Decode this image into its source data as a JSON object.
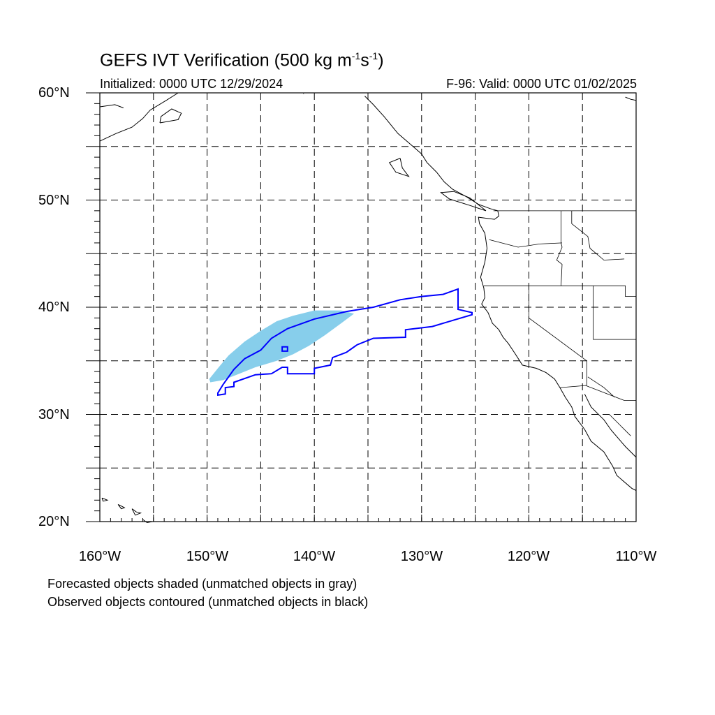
{
  "title": {
    "main": "GEFS IVT Verification (500 kg m",
    "exp1": "-1",
    "mid": "s",
    "exp2": "-1",
    "close": ")"
  },
  "subtitle_left": "Initialized: 0000 UTC 12/29/2024",
  "subtitle_right": "F-96: Valid: 0000 UTC 01/02/2025",
  "lat_labels": [
    "60°N",
    "50°N",
    "40°N",
    "30°N",
    "20°N"
  ],
  "lon_labels": [
    "160°W",
    "150°W",
    "140°W",
    "130°W",
    "120°W",
    "110°W"
  ],
  "footnotes": [
    "Forecasted objects shaded (unmatched objects in gray)",
    "Observed objects contoured (unmatched objects in black)"
  ],
  "extent": {
    "lon_min": -160,
    "lon_max": -110,
    "lat_min": 20,
    "lat_max": 60
  },
  "colors": {
    "forecast_fill": "#87ceeb",
    "observed_contour": "#0000ff",
    "coastline": "#000000",
    "grid": "#000000"
  },
  "grid": {
    "lines": "dashed",
    "lat_step": 5,
    "lon_step": 5
  },
  "forecast_object": {
    "matched": true,
    "polygon": [
      [
        -149.7,
        33.0
      ],
      [
        -148.5,
        33.2
      ],
      [
        -147.0,
        33.8
      ],
      [
        -145.5,
        34.4
      ],
      [
        -143.5,
        35.0
      ],
      [
        -142.0,
        35.6
      ],
      [
        -140.5,
        36.4
      ],
      [
        -139.0,
        37.4
      ],
      [
        -137.5,
        38.5
      ],
      [
        -136.3,
        39.4
      ],
      [
        -137.5,
        39.7
      ],
      [
        -140.0,
        39.7
      ],
      [
        -142.0,
        39.2
      ],
      [
        -143.5,
        38.7
      ],
      [
        -145.0,
        37.8
      ],
      [
        -146.5,
        36.8
      ],
      [
        -148.0,
        35.5
      ],
      [
        -149.0,
        34.3
      ],
      [
        -149.8,
        33.3
      ]
    ]
  },
  "observed_object": {
    "matched": true,
    "polygon": [
      [
        -149.0,
        31.8
      ],
      [
        -148.3,
        31.9
      ],
      [
        -148.3,
        32.5
      ],
      [
        -147.5,
        32.6
      ],
      [
        -147.5,
        33.0
      ],
      [
        -145.5,
        33.7
      ],
      [
        -144.0,
        33.8
      ],
      [
        -143.0,
        34.4
      ],
      [
        -142.5,
        34.4
      ],
      [
        -142.5,
        33.8
      ],
      [
        -140.0,
        33.8
      ],
      [
        -140.0,
        34.3
      ],
      [
        -138.5,
        34.6
      ],
      [
        -138.3,
        35.3
      ],
      [
        -137.0,
        35.8
      ],
      [
        -136.0,
        36.5
      ],
      [
        -134.5,
        37.1
      ],
      [
        -131.5,
        37.2
      ],
      [
        -131.5,
        37.9
      ],
      [
        -129.0,
        38.2
      ],
      [
        -127.0,
        38.8
      ],
      [
        -125.3,
        39.3
      ],
      [
        -125.3,
        39.5
      ],
      [
        -126.6,
        39.8
      ],
      [
        -126.6,
        41.7
      ],
      [
        -128.0,
        41.2
      ],
      [
        -130.0,
        41.0
      ],
      [
        -132.0,
        40.7
      ],
      [
        -134.5,
        40.0
      ],
      [
        -137.0,
        39.6
      ],
      [
        -140.0,
        38.9
      ],
      [
        -142.5,
        38.0
      ],
      [
        -144.0,
        37.1
      ],
      [
        -145.0,
        36.0
      ],
      [
        -146.5,
        35.2
      ],
      [
        -147.5,
        34.2
      ],
      [
        -148.5,
        32.8
      ],
      [
        -149.0,
        32.0
      ]
    ],
    "inner_box": [
      [
        -143.0,
        35.9
      ],
      [
        -142.5,
        35.9
      ],
      [
        -142.5,
        36.3
      ],
      [
        -143.0,
        36.3
      ]
    ]
  },
  "coastlines": [
    [
      [
        -135.3,
        59.7
      ],
      [
        -134.5,
        58.9
      ],
      [
        -133.5,
        57.8
      ],
      [
        -132.2,
        56.2
      ],
      [
        -130.8,
        55.0
      ],
      [
        -130.0,
        54.3
      ],
      [
        -129.5,
        53.5
      ],
      [
        -128.6,
        52.6
      ],
      [
        -127.9,
        51.7
      ],
      [
        -127.1,
        51.0
      ],
      [
        -125.8,
        50.3
      ],
      [
        -124.7,
        49.6
      ],
      [
        -123.6,
        49.2
      ],
      [
        -122.9,
        49.0
      ],
      [
        -122.8,
        48.5
      ],
      [
        -123.2,
        48.2
      ],
      [
        -124.7,
        48.4
      ],
      [
        -124.6,
        47.8
      ],
      [
        -124.1,
        46.9
      ],
      [
        -124.0,
        46.2
      ],
      [
        -123.9,
        45.5
      ],
      [
        -124.1,
        44.2
      ],
      [
        -124.5,
        42.8
      ],
      [
        -124.2,
        41.8
      ],
      [
        -124.1,
        40.9
      ],
      [
        -124.4,
        40.3
      ],
      [
        -123.8,
        39.5
      ],
      [
        -123.4,
        38.5
      ],
      [
        -122.8,
        37.9
      ],
      [
        -122.4,
        37.2
      ],
      [
        -121.9,
        36.6
      ],
      [
        -121.3,
        35.7
      ],
      [
        -120.6,
        34.6
      ],
      [
        -119.3,
        34.3
      ],
      [
        -118.4,
        33.9
      ],
      [
        -117.6,
        33.3
      ],
      [
        -117.1,
        32.5
      ],
      [
        -116.6,
        31.6
      ],
      [
        -116.0,
        30.7
      ],
      [
        -115.7,
        29.8
      ],
      [
        -114.8,
        28.6
      ],
      [
        -114.2,
        27.5
      ],
      [
        -113.0,
        26.5
      ],
      [
        -112.2,
        25.2
      ],
      [
        -111.8,
        24.3
      ],
      [
        -110.4,
        23.1
      ],
      [
        -110.0,
        22.9
      ]
    ],
    [
      [
        -114.8,
        31.9
      ],
      [
        -114.2,
        30.7
      ],
      [
        -113.0,
        29.5
      ],
      [
        -112.3,
        28.5
      ],
      [
        -111.0,
        27.0
      ],
      [
        -110.0,
        26.0
      ]
    ],
    [
      [
        -160.0,
        55.5
      ],
      [
        -158.5,
        56.2
      ],
      [
        -157.0,
        56.8
      ],
      [
        -156.0,
        57.6
      ],
      [
        -155.3,
        58.4
      ],
      [
        -153.8,
        59.3
      ],
      [
        -152.7,
        60.0
      ]
    ],
    [
      [
        -160.0,
        58.7
      ],
      [
        -158.6,
        58.9
      ],
      [
        -157.8,
        58.6
      ]
    ],
    [
      [
        -154.4,
        57.2
      ],
      [
        -152.7,
        57.5
      ],
      [
        -152.4,
        58.1
      ],
      [
        -153.3,
        58.5
      ],
      [
        -154.3,
        57.8
      ],
      [
        -154.4,
        57.2
      ]
    ],
    [
      [
        -124.0,
        49.0
      ],
      [
        -125.5,
        49.5
      ],
      [
        -127.4,
        50.1
      ],
      [
        -128.2,
        50.7
      ],
      [
        -127.0,
        50.8
      ],
      [
        -125.5,
        50.2
      ],
      [
        -124.0,
        49.0
      ]
    ],
    [
      [
        -132.0,
        53.9
      ],
      [
        -131.8,
        53.0
      ],
      [
        -131.2,
        52.2
      ],
      [
        -132.4,
        52.6
      ],
      [
        -133.0,
        53.5
      ],
      [
        -132.0,
        53.9
      ]
    ],
    [
      [
        -111.0,
        59.6
      ],
      [
        -110.5,
        59.4
      ],
      [
        -110.0,
        59.3
      ]
    ],
    [
      [
        -159.8,
        22.2
      ],
      [
        -159.3,
        22.0
      ],
      [
        -159.7,
        21.9
      ],
      [
        -159.8,
        22.2
      ]
    ],
    [
      [
        -158.3,
        21.6
      ],
      [
        -157.7,
        21.3
      ],
      [
        -158.0,
        21.2
      ],
      [
        -158.3,
        21.6
      ]
    ],
    [
      [
        -157.0,
        21.2
      ],
      [
        -156.6,
        20.9
      ],
      [
        -156.2,
        20.8
      ],
      [
        -156.7,
        20.6
      ],
      [
        -157.0,
        21.2
      ]
    ],
    [
      [
        -156.0,
        20.2
      ],
      [
        -155.6,
        19.9
      ],
      [
        -155.1,
        20.0
      ]
    ]
  ],
  "borders": [
    [
      [
        -123.3,
        49.0
      ],
      [
        -110.0,
        49.0
      ]
    ],
    [
      [
        -141.0,
        60.0
      ],
      [
        -141.0,
        59.9
      ]
    ],
    [
      [
        -124.2,
        42.0
      ],
      [
        -111.0,
        42.0
      ],
      [
        -111.0,
        41.0
      ],
      [
        -110.0,
        41.0
      ]
    ],
    [
      [
        -120.0,
        42.0
      ],
      [
        -120.0,
        39.0
      ],
      [
        -114.6,
        35.0
      ]
    ],
    [
      [
        -114.0,
        42.0
      ],
      [
        -114.0,
        37.0
      ],
      [
        -110.0,
        37.0
      ]
    ],
    [
      [
        -114.6,
        35.0
      ],
      [
        -114.6,
        32.7
      ]
    ],
    [
      [
        -117.1,
        32.5
      ],
      [
        -114.7,
        32.7
      ],
      [
        -111.1,
        31.3
      ],
      [
        -110.0,
        31.3
      ]
    ],
    [
      [
        -117.0,
        49.0
      ],
      [
        -117.0,
        46.0
      ],
      [
        -116.9,
        45.6
      ],
      [
        -117.4,
        44.4
      ],
      [
        -116.9,
        44.0
      ],
      [
        -117.0,
        42.0
      ]
    ],
    [
      [
        -123.7,
        46.3
      ],
      [
        -121.0,
        45.6
      ],
      [
        -119.0,
        45.9
      ],
      [
        -116.9,
        46.0
      ]
    ],
    [
      [
        -116.0,
        49.0
      ],
      [
        -116.0,
        47.8
      ],
      [
        -114.5,
        46.6
      ],
      [
        -114.3,
        45.5
      ],
      [
        -113.0,
        44.4
      ],
      [
        -111.1,
        44.5
      ]
    ],
    [
      [
        -111.0,
        45.0
      ],
      [
        -110.0,
        45.0
      ]
    ],
    [
      [
        -114.5,
        33.5
      ],
      [
        -113.0,
        32.5
      ],
      [
        -112.0,
        31.6
      ]
    ],
    [
      [
        -112.5,
        30.0
      ],
      [
        -111.5,
        29.0
      ],
      [
        -110.5,
        28.0
      ]
    ]
  ]
}
